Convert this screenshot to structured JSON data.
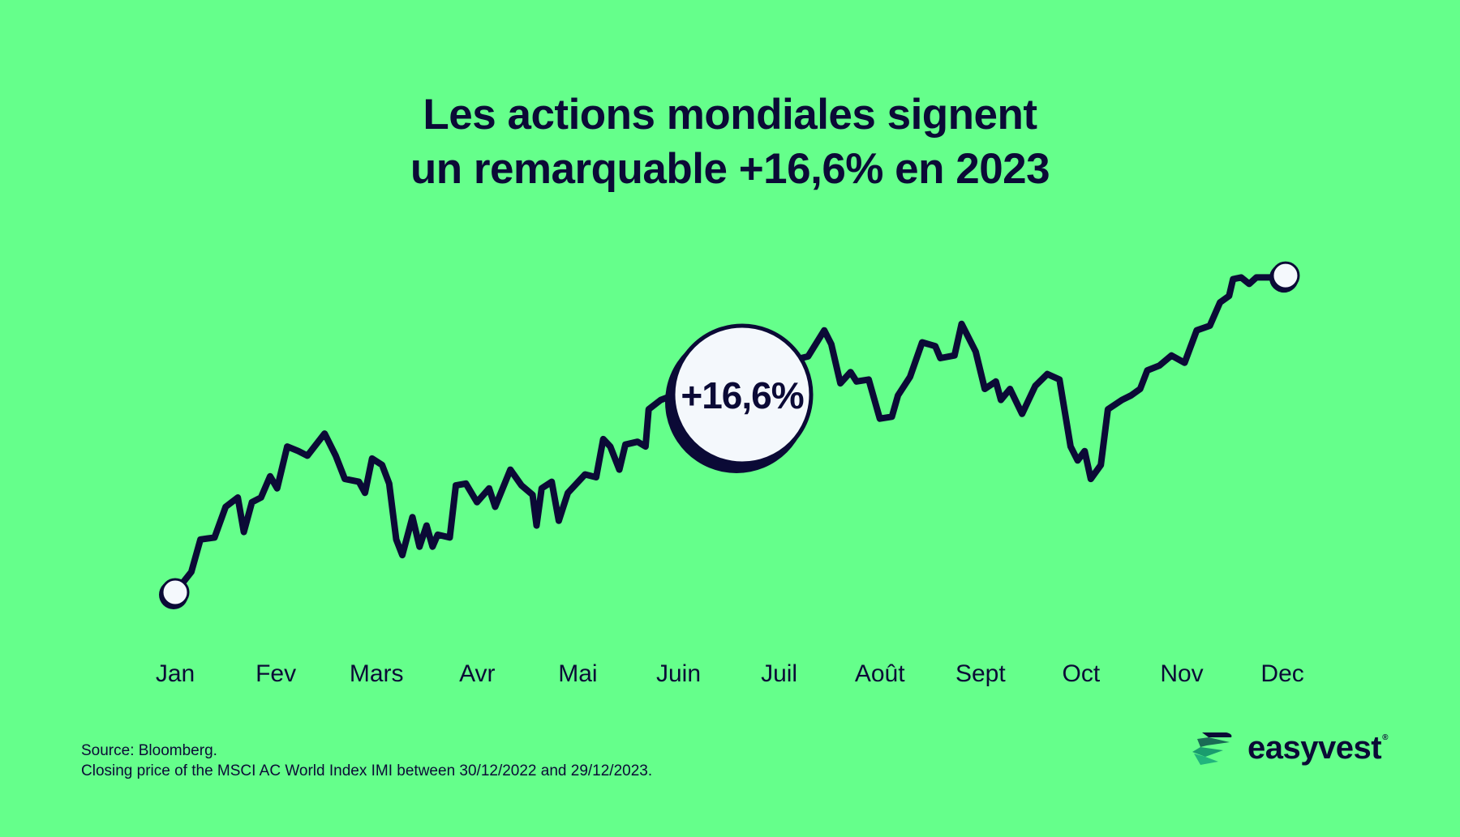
{
  "title": {
    "line1": "Les actions mondiales signent",
    "line2": "un remarquable +16,6% en 2023"
  },
  "chart_data": {
    "type": "line",
    "title": "Les actions mondiales signent un remarquable +16,6% en 2023",
    "categories": [
      "Jan",
      "Fev",
      "Mars",
      "Avr",
      "Mai",
      "Juin",
      "Juil",
      "Août",
      "Sept",
      "Oct",
      "Nov",
      "Dec"
    ],
    "annotation": "+16,6%",
    "grid": false,
    "y_axis_visible": false,
    "line_color": "#0b0a36",
    "background_color": "#65ff8b",
    "series": [
      {
        "points": [
          [
            0,
            100
          ],
          [
            0.16,
            101.07
          ],
          [
            0.25,
            102.77
          ],
          [
            0.39,
            102.87
          ],
          [
            0.5,
            104.48
          ],
          [
            0.62,
            104.97
          ],
          [
            0.68,
            103.16
          ],
          [
            0.76,
            104.72
          ],
          [
            0.85,
            104.97
          ],
          [
            0.94,
            106.08
          ],
          [
            1.01,
            105.45
          ],
          [
            1.11,
            107.64
          ],
          [
            1.22,
            107.4
          ],
          [
            1.31,
            107.16
          ],
          [
            1.48,
            108.32
          ],
          [
            1.59,
            107.16
          ],
          [
            1.68,
            105.94
          ],
          [
            1.82,
            105.79
          ],
          [
            1.88,
            105.21
          ],
          [
            1.95,
            107.01
          ],
          [
            2.05,
            106.67
          ],
          [
            2.12,
            105.7
          ],
          [
            2.19,
            102.77
          ],
          [
            2.25,
            101.95
          ],
          [
            2.35,
            103.94
          ],
          [
            2.42,
            102.39
          ],
          [
            2.49,
            103.5
          ],
          [
            2.55,
            102.39
          ],
          [
            2.6,
            103.02
          ],
          [
            2.72,
            102.87
          ],
          [
            2.78,
            105.6
          ],
          [
            2.88,
            105.7
          ],
          [
            2.99,
            104.72
          ],
          [
            3.11,
            105.45
          ],
          [
            3.17,
            104.48
          ],
          [
            3.32,
            106.43
          ],
          [
            3.43,
            105.6
          ],
          [
            3.54,
            105.11
          ],
          [
            3.58,
            103.5
          ],
          [
            3.63,
            105.45
          ],
          [
            3.73,
            105.79
          ],
          [
            3.8,
            103.75
          ],
          [
            3.89,
            105.21
          ],
          [
            4.06,
            106.18
          ],
          [
            4.17,
            106.03
          ],
          [
            4.24,
            108.03
          ],
          [
            4.31,
            107.64
          ],
          [
            4.4,
            106.43
          ],
          [
            4.46,
            107.74
          ],
          [
            4.58,
            107.89
          ],
          [
            4.66,
            107.64
          ],
          [
            4.69,
            109.59
          ],
          [
            4.81,
            110.08
          ],
          [
            5.27,
            111.0
          ],
          [
            5.83,
            111.8
          ],
          [
            6.27,
            112.36
          ],
          [
            6.43,
            113.73
          ],
          [
            6.5,
            113.0
          ],
          [
            6.59,
            110.95
          ],
          [
            6.69,
            111.54
          ],
          [
            6.75,
            111.05
          ],
          [
            6.87,
            111.15
          ],
          [
            6.98,
            109.1
          ],
          [
            7.1,
            109.2
          ],
          [
            7.16,
            110.32
          ],
          [
            7.28,
            111.29
          ],
          [
            7.4,
            113.1
          ],
          [
            7.53,
            112.9
          ],
          [
            7.58,
            112.27
          ],
          [
            7.72,
            112.41
          ],
          [
            7.79,
            114.07
          ],
          [
            7.93,
            112.61
          ],
          [
            8.02,
            110.66
          ],
          [
            8.13,
            111.05
          ],
          [
            8.18,
            110.08
          ],
          [
            8.27,
            110.66
          ],
          [
            8.39,
            109.35
          ],
          [
            8.52,
            110.81
          ],
          [
            8.64,
            111.44
          ],
          [
            8.76,
            111.15
          ],
          [
            8.87,
            107.64
          ],
          [
            8.94,
            106.91
          ],
          [
            9.01,
            107.4
          ],
          [
            9.07,
            105.94
          ],
          [
            9.17,
            106.67
          ],
          [
            9.24,
            109.59
          ],
          [
            9.38,
            110.08
          ],
          [
            9.47,
            110.32
          ],
          [
            9.56,
            110.66
          ],
          [
            9.63,
            111.63
          ],
          [
            9.75,
            111.88
          ],
          [
            9.87,
            112.41
          ],
          [
            10.0,
            112.03
          ],
          [
            10.12,
            113.73
          ],
          [
            10.25,
            113.97
          ],
          [
            10.35,
            115.19
          ],
          [
            10.44,
            115.53
          ],
          [
            10.48,
            116.41
          ],
          [
            10.56,
            116.5
          ],
          [
            10.64,
            116.16
          ],
          [
            10.71,
            116.5
          ],
          [
            10.85,
            116.5
          ],
          [
            11,
            116.6
          ]
        ]
      }
    ]
  },
  "footnote": {
    "source": "Source: Bloomberg.",
    "description": "Closing price of the MSCI AC World Index IMI between 30/12/2022 and 29/12/2023."
  },
  "logo": {
    "text": "easyvest",
    "registered": "®"
  }
}
